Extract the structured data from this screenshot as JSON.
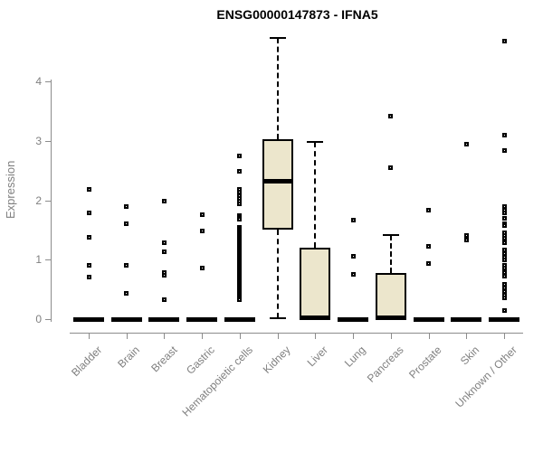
{
  "chart_data": {
    "type": "boxplot",
    "title": "ENSG00000147873 - IFNA5",
    "xlabel": "",
    "ylabel": "Expression",
    "yticks": [
      0,
      1,
      2,
      3,
      4
    ],
    "ylim": [
      0,
      4.85
    ],
    "grid": false,
    "legend": "none",
    "box_fill_color": "#ece6cc",
    "box_line_color": "#000000",
    "axis_color": "#8c8c8c",
    "label_color": "#7f7f7f",
    "categories": [
      "Bladder",
      "Brain",
      "Breast",
      "Gastric",
      "Hematopoietic cells",
      "Kidney",
      "Liver",
      "Lung",
      "Pancreas",
      "Prostate",
      "Skin",
      "Unknown / Other"
    ],
    "series": [
      {
        "name": "Bladder",
        "q1": 0,
        "median": 0,
        "q3": 0,
        "whisker_low": 0,
        "whisker_high": 0,
        "outliers": [
          2.19,
          1.78,
          1.38,
          0.91,
          0.71
        ]
      },
      {
        "name": "Brain",
        "q1": 0,
        "median": 0,
        "q3": 0,
        "whisker_low": 0,
        "whisker_high": 0,
        "outliers": [
          1.9,
          1.61,
          0.91,
          0.44
        ]
      },
      {
        "name": "Breast",
        "q1": 0,
        "median": 0,
        "q3": 0,
        "whisker_low": 0,
        "whisker_high": 0,
        "outliers": [
          1.99,
          1.28,
          1.14,
          0.79,
          0.74,
          0.32
        ]
      },
      {
        "name": "Gastric",
        "q1": 0,
        "median": 0,
        "q3": 0,
        "whisker_low": 0,
        "whisker_high": 0,
        "outliers": [
          1.76,
          1.48,
          0.86
        ]
      },
      {
        "name": "Hematopoietic cells",
        "q1": 0,
        "median": 0,
        "q3": 0,
        "whisker_low": 0,
        "whisker_high": 0,
        "outliers": [
          2.74,
          2.48,
          2.18,
          2.13,
          2.08,
          2.03,
          1.98,
          1.94,
          1.74,
          1.71,
          1.68,
          1.55,
          1.52,
          1.49,
          1.46,
          1.43,
          1.4,
          1.37,
          1.34,
          1.31,
          1.28,
          1.25,
          1.22,
          1.19,
          1.16,
          1.13,
          1.1,
          1.07,
          1.04,
          1.01,
          0.98,
          0.95,
          0.92,
          0.89,
          0.86,
          0.83,
          0.8,
          0.77,
          0.74,
          0.71,
          0.68,
          0.65,
          0.62,
          0.59,
          0.56,
          0.53,
          0.5,
          0.47,
          0.44,
          0.41,
          0.38,
          0.35,
          0.32
        ]
      },
      {
        "name": "Kidney",
        "q1": 1.51,
        "median": 2.32,
        "q3": 3.02,
        "whisker_low": 0.02,
        "whisker_high": 4.73,
        "outliers": []
      },
      {
        "name": "Liver",
        "q1": 0,
        "median": 0.02,
        "q3": 1.2,
        "whisker_low": 0,
        "whisker_high": 2.98,
        "outliers": []
      },
      {
        "name": "Lung",
        "q1": 0,
        "median": 0,
        "q3": 0,
        "whisker_low": 0,
        "whisker_high": 0,
        "outliers": [
          1.67,
          1.06,
          0.76
        ]
      },
      {
        "name": "Pancreas",
        "q1": 0,
        "median": 0.02,
        "q3": 0.77,
        "whisker_low": 0,
        "whisker_high": 1.41,
        "outliers": [
          3.41,
          2.55
        ]
      },
      {
        "name": "Prostate",
        "q1": 0,
        "median": 0,
        "q3": 0,
        "whisker_low": 0,
        "whisker_high": 0,
        "outliers": [
          1.83,
          1.22,
          0.93
        ]
      },
      {
        "name": "Skin",
        "q1": 0,
        "median": 0,
        "q3": 0,
        "whisker_low": 0,
        "whisker_high": 0,
        "outliers": [
          2.94,
          1.4,
          1.33
        ]
      },
      {
        "name": "Unknown / Other",
        "q1": 0,
        "median": 0,
        "q3": 0,
        "whisker_low": 0,
        "whisker_high": 0,
        "outliers": [
          4.68,
          3.1,
          2.84,
          1.9,
          1.84,
          1.79,
          1.7,
          1.61,
          1.57,
          1.46,
          1.4,
          1.36,
          1.29,
          1.16,
          1.1,
          1.04,
          0.99,
          0.91,
          0.86,
          0.79,
          0.73,
          0.58,
          0.52,
          0.47,
          0.41,
          0.35,
          0.15
        ]
      }
    ]
  }
}
